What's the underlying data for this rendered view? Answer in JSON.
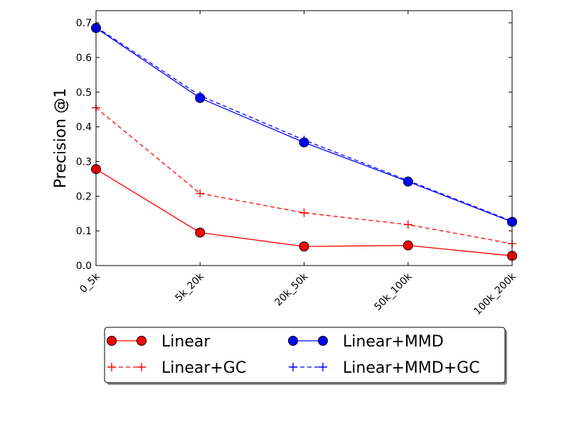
{
  "chart_data": {
    "type": "line",
    "title": "",
    "xlabel": "",
    "ylabel": "Precision @1",
    "categories": [
      "0_5k",
      "5k_20k",
      "20k_50k",
      "50k_100k",
      "100k_200k"
    ],
    "ylim": [
      0.0,
      0.735
    ],
    "yticks": [
      0.0,
      0.1,
      0.2,
      0.3,
      0.4,
      0.5,
      0.6,
      0.7
    ],
    "ytick_labels": [
      "0.0",
      "0.1",
      "0.2",
      "0.3",
      "0.4",
      "0.5",
      "0.6",
      "0.7"
    ],
    "legend_position": "below-center",
    "series": [
      {
        "name": "Linear",
        "values": [
          0.278,
          0.095,
          0.055,
          0.058,
          0.028
        ],
        "color": "#ff0000",
        "dash": "solid",
        "marker": "circle"
      },
      {
        "name": "Linear+GC",
        "values": [
          0.455,
          0.208,
          0.152,
          0.118,
          0.063
        ],
        "color": "#ff0000",
        "dash": "dashed",
        "marker": "plus"
      },
      {
        "name": "Linear+MMD",
        "values": [
          0.685,
          0.483,
          0.355,
          0.242,
          0.126
        ],
        "color": "#0000ff",
        "dash": "solid",
        "marker": "circle"
      },
      {
        "name": "Linear+MMD+GC",
        "values": [
          0.688,
          0.49,
          0.362,
          0.245,
          0.128
        ],
        "color": "#0000ff",
        "dash": "dashed",
        "marker": "plus"
      }
    ]
  }
}
